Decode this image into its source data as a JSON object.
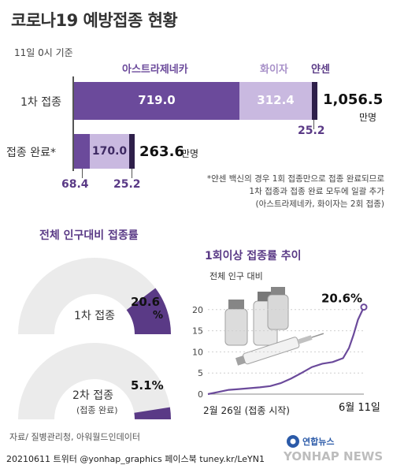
{
  "title": "코로나19 예방접종 현황",
  "as_of": "11일 0시 기준",
  "vaccines": {
    "astrazeneca": "아스트라제네카",
    "pfizer": "화이자",
    "janssen": "얀센"
  },
  "colors": {
    "astrazeneca": "#6b4a9b",
    "pfizer": "#c9b9e0",
    "janssen": "#2e1f4a",
    "accent": "#5a3a86",
    "gauge_bg": "#ebebeb",
    "line": "#6b4a9b"
  },
  "bars": {
    "first_dose": {
      "label": "1차 접종",
      "astrazeneca": "719.0",
      "pfizer": "312.4",
      "janssen": "25.2",
      "total": "1,056.5",
      "unit": "만명"
    },
    "fully_vaccinated": {
      "label": "접종 완료*",
      "astrazeneca": "68.4",
      "pfizer": "170.0",
      "janssen": "25.2",
      "total": "263.6",
      "unit": "만명"
    }
  },
  "footnote": [
    "*얀센 백신의 경우 1회 접종만으로 접종 완료되므로",
    "1차 접종과 접종 완료 모두에 일괄 추가",
    "(아스트라제네카, 화이자는 2회 접종)"
  ],
  "gauges": {
    "title": "전체 인구대비 접종률",
    "first": {
      "label": "1차 접종",
      "value": "20.6",
      "unit": "%",
      "fraction": 0.206
    },
    "second": {
      "label": "2차 접종",
      "sublabel": "(접종 완료)",
      "value": "5.1%",
      "fraction": 0.051
    }
  },
  "chart_data": {
    "type": "line",
    "title": "1회이상 접종률 추이",
    "subtitle": "전체 인구 대비",
    "x_start_label": "2월 26일 (접종 시작)",
    "x_end_label": "6월 11일",
    "ylim": [
      0,
      25
    ],
    "yticks": [
      0,
      5,
      10,
      15,
      20
    ],
    "last_value_label": "20.6%",
    "x": [
      "2021-02-26",
      "2021-03-05",
      "2021-03-12",
      "2021-03-19",
      "2021-03-26",
      "2021-04-02",
      "2021-04-09",
      "2021-04-16",
      "2021-04-23",
      "2021-04-30",
      "2021-05-07",
      "2021-05-14",
      "2021-05-21",
      "2021-05-28",
      "2021-06-01",
      "2021-06-04",
      "2021-06-07",
      "2021-06-11"
    ],
    "y": [
      0,
      0.5,
      1.0,
      1.2,
      1.4,
      1.6,
      1.9,
      2.6,
      3.7,
      5.0,
      6.4,
      7.2,
      7.6,
      8.5,
      10.9,
      14.0,
      17.6,
      20.6
    ]
  },
  "source": "자료/ 질병관리청, 아워월드인데이터",
  "credit": "20210611 트위터 @yonhap_graphics  페이스북 tuney.kr/LeYN1",
  "logo": {
    "name": "연합뉴스",
    "text": "YONHAP NEWS"
  }
}
